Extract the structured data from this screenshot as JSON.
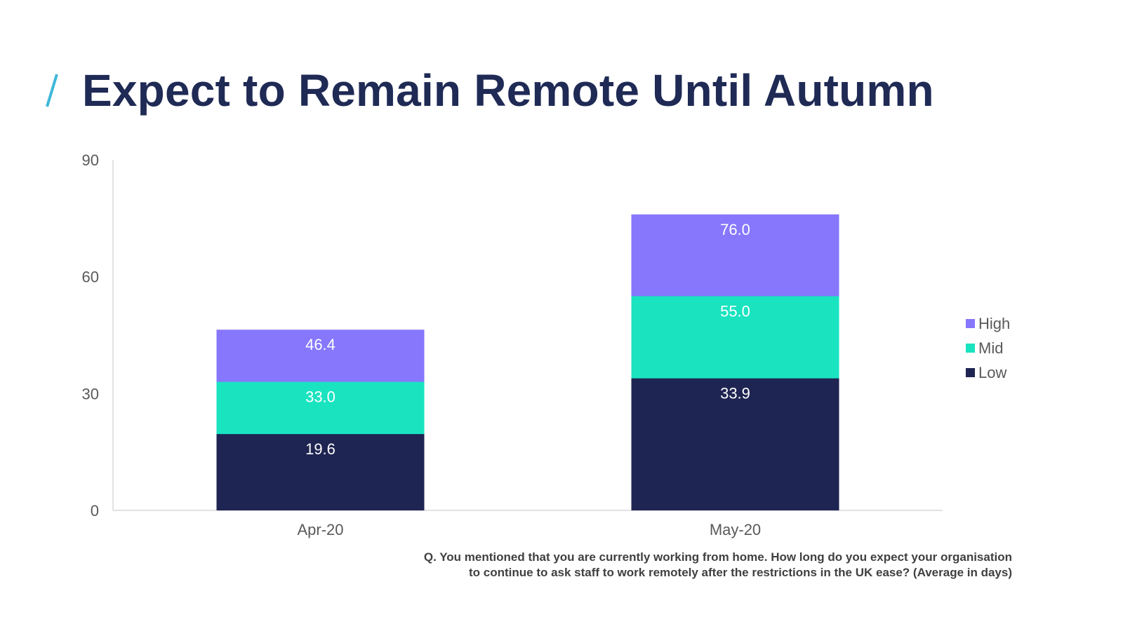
{
  "slide": {
    "title": "Expect to Remain Remote Until Autumn",
    "accent_color": "#3fb8d9",
    "footnote_line1": "Q. You mentioned that you are currently working from home. How long do you expect your organisation",
    "footnote_line2": "to continue to ask staff to work remotely after the restrictions in the UK ease? (Average in days)"
  },
  "chart_data": {
    "type": "bar",
    "stacked": false,
    "overlapping": true,
    "categories": [
      "Apr-20",
      "May-20"
    ],
    "series": [
      {
        "name": "Low",
        "values": [
          19.6,
          33.9
        ],
        "color": "#1f2552"
      },
      {
        "name": "Mid",
        "values": [
          33.0,
          55.0
        ],
        "color": "#1ae3c0"
      },
      {
        "name": "High",
        "values": [
          46.4,
          76.0
        ],
        "color": "#8777fc"
      }
    ],
    "data_labels": true,
    "ylim": [
      0,
      90
    ],
    "yticks": [
      0,
      30,
      60,
      90
    ],
    "ytick_labels": [
      "0",
      "30",
      "60",
      "90"
    ],
    "grid": false,
    "legend": {
      "position": "right",
      "order": [
        "High",
        "Mid",
        "Low"
      ]
    },
    "xlabel": "",
    "ylabel": ""
  }
}
